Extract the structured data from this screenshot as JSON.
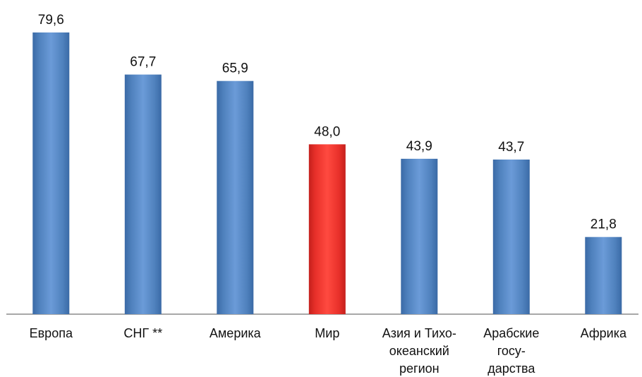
{
  "chart_data": {
    "type": "bar",
    "categories": [
      [
        "Европа"
      ],
      [
        "СНГ **"
      ],
      [
        "Америка"
      ],
      [
        "Мир"
      ],
      [
        "Азия и Тихо-",
        "океанский",
        "регион"
      ],
      [
        "Арабские",
        "госу-",
        "дарства"
      ],
      [
        "Африка"
      ]
    ],
    "values": [
      79.6,
      67.7,
      65.9,
      48.0,
      43.9,
      43.7,
      21.8
    ],
    "value_labels": [
      "79,6",
      "67,7",
      "65,9",
      "48,0",
      "43,9",
      "43,7",
      "21,8"
    ],
    "highlight_index": 3,
    "ylim": [
      0,
      80
    ],
    "grid": false,
    "legend": "none",
    "colors": {
      "bar": "#4f81bd",
      "bar_light": "#6b9bd8",
      "bar_dark": "#3a6aa6",
      "highlight": "#e8302a",
      "highlight_light": "#ff4a40",
      "highlight_dark": "#c4201c",
      "axis": "#8c8c8c"
    }
  }
}
